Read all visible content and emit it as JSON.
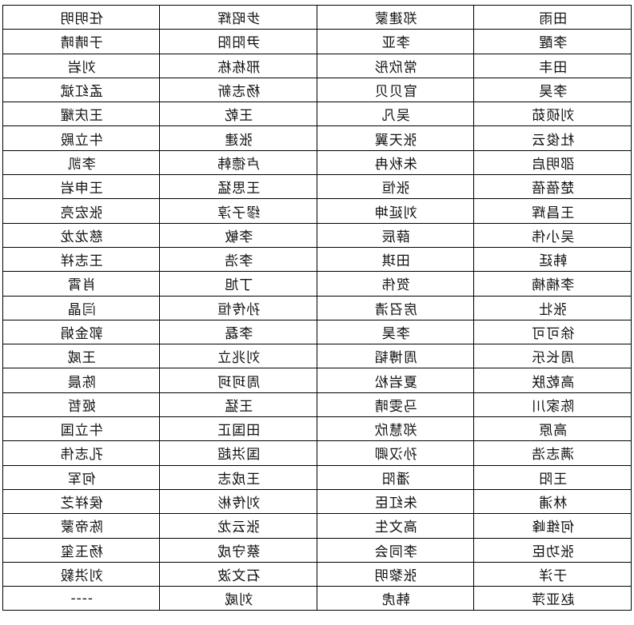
{
  "mirrored": true,
  "table": {
    "rows": [
      [
        "田雨",
        "郑建蒙",
        "步昭辉",
        "任明明"
      ],
      [
        "李醒",
        "李亚",
        "尹阳阳",
        "于晴晴"
      ],
      [
        "田丰",
        "常欣彤",
        "邢栋栋",
        "刘岩"
      ],
      [
        "李昊",
        "官贝贝",
        "杨志新",
        "孟红斌"
      ],
      [
        "刘硕茹",
        "吴凡",
        "王乾",
        "王庆耀"
      ],
      [
        "杜俊云",
        "张天翼",
        "张建",
        "牛立殿"
      ],
      [
        "邵明启",
        "朱秋冉",
        "卢德韩",
        "李凯"
      ],
      [
        "楚蓓蓓",
        "张恒",
        "王思猛",
        "王申岩"
      ],
      [
        "王昌辉",
        "刘延坤",
        "缪子淳",
        "张宏亮"
      ],
      [
        "吴小伟",
        "薛辰",
        "李敏",
        "慈龙龙"
      ],
      [
        "韩廷",
        "田琪",
        "李浩",
        "王志祥"
      ],
      [
        "李楠楠",
        "贺伟",
        "丁旭",
        "肖霄"
      ],
      [
        "张壮",
        "房召清",
        "孙传恒",
        "闫晶"
      ],
      [
        "徐可可",
        "李昊",
        "李磊",
        "郭金娟"
      ],
      [
        "周长乐",
        "周博韬",
        "刘兆立",
        "王威"
      ],
      [
        "高乾朕",
        "夏岩松",
        "周珂珂",
        "陈晨"
      ],
      [
        "陈家川",
        "马雯晴",
        "王猛",
        "姬哲"
      ],
      [
        "高原",
        "郑慧欣",
        "田国正",
        "牛立国"
      ],
      [
        "满志浩",
        "孙汉卿",
        "国洪超",
        "孔志伟"
      ],
      [
        "王阳",
        "潘阳",
        "王成志",
        "何军"
      ],
      [
        "林浦",
        "朱红臣",
        "刘传彬",
        "侯祥芝"
      ],
      [
        "何维峰",
        "高文生",
        "张云龙",
        "陈帝蒙"
      ],
      [
        "张功臣",
        "李同会",
        "蔡守成",
        "杨玉玺"
      ],
      [
        "于洋",
        "张黎明",
        "石文波",
        "刘洪毅"
      ],
      [
        "赵亚萍",
        "韩虎",
        "刘威",
        "----"
      ]
    ]
  }
}
